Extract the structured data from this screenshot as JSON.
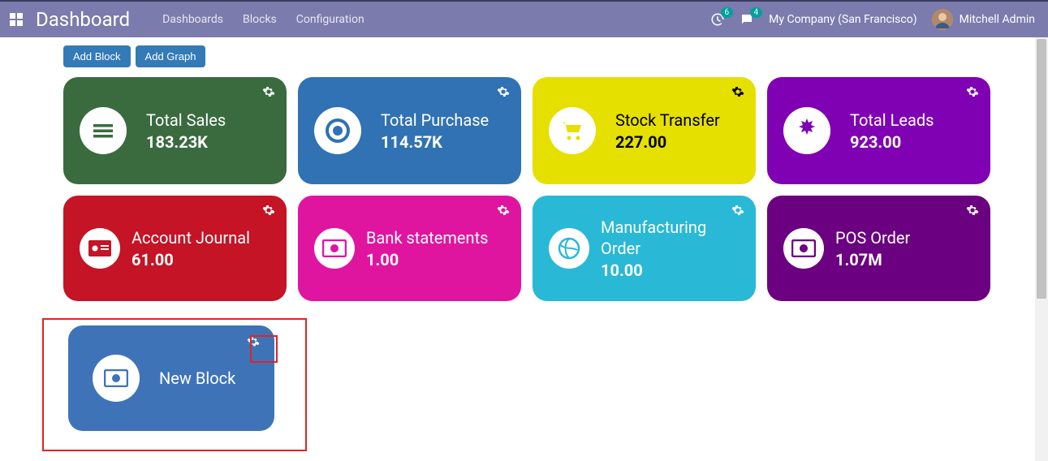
{
  "header": {
    "brand": "Dashboard",
    "nav": [
      "Dashboards",
      "Blocks",
      "Configuration"
    ],
    "notif_clock_count": "6",
    "notif_msg_count": "4",
    "company": "My Company (San Francisco)",
    "user_name": "Mitchell Admin"
  },
  "actions": {
    "add_block": "Add Block",
    "add_graph": "Add Graph"
  },
  "cards": [
    {
      "id": "total-sales",
      "title": "Total Sales",
      "value": "183.23K",
      "bg": "#3a6b3f",
      "icon": "bars",
      "icon_color": "#3a6b3f",
      "gear_color": "#ffffff"
    },
    {
      "id": "total-purchase",
      "title": "Total Purchase",
      "value": "114.57K",
      "bg": "#3072b3",
      "icon": "circle",
      "icon_color": "#3072b3",
      "gear_color": "#ffffff"
    },
    {
      "id": "stock-transfer",
      "title": "Stock Transfer",
      "value": "227.00",
      "bg": "#e6e000",
      "icon": "cart",
      "icon_color": "#e6e000",
      "gear_color": "#000000",
      "dark_text": true
    },
    {
      "id": "total-leads",
      "title": "Total Leads",
      "value": "923.00",
      "bg": "#8000b3",
      "icon": "burst",
      "icon_color": "#8000b3",
      "gear_color": "#ffffff"
    },
    {
      "id": "account-journal",
      "title": "Account Journal",
      "value": "61.00",
      "bg": "#c41425",
      "icon": "idcard",
      "icon_color": "#c41425",
      "gear_color": "#ffffff"
    },
    {
      "id": "bank-statements",
      "title": "Bank statements",
      "value": "1.00",
      "bg": "#e0159f",
      "icon": "money",
      "icon_color": "#e0159f",
      "gear_color": "#ffffff"
    },
    {
      "id": "mfg-order",
      "title": "Manufacturing Order",
      "value": "10.00",
      "bg": "#29b8d6",
      "icon": "globe",
      "icon_color": "#29b8d6",
      "gear_color": "#ffffff"
    },
    {
      "id": "pos-order",
      "title": "POS Order",
      "value": "1.07M",
      "bg": "#6b0080",
      "icon": "money",
      "icon_color": "#6b0080",
      "gear_color": "#ffffff"
    }
  ],
  "new_block": {
    "title": "New Block",
    "bg": "#3e74b7",
    "icon": "money",
    "icon_color": "#3e74b7"
  },
  "colors": {
    "topbar": "#7c7bad",
    "btn": "#337ab7",
    "highlight": "#e02424"
  }
}
